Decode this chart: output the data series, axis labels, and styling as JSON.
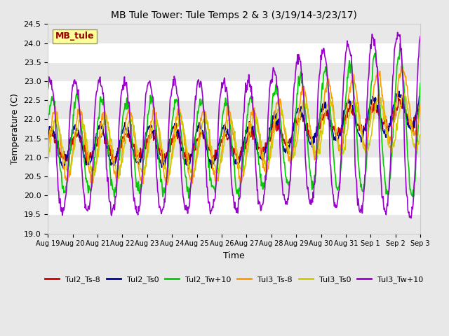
{
  "title": "MB Tule Tower: Tule Temps 2 & 3 (3/19/14-3/23/17)",
  "xlabel": "Time",
  "ylabel": "Temperature (C)",
  "ylim": [
    19.0,
    24.5
  ],
  "yticks": [
    19.0,
    19.5,
    20.0,
    20.5,
    21.0,
    21.5,
    22.0,
    22.5,
    23.0,
    23.5,
    24.0,
    24.5
  ],
  "xtick_labels": [
    "Aug 19",
    "Aug 20",
    "Aug 21",
    "Aug 22",
    "Aug 23",
    "Aug 24",
    "Aug 25",
    "Aug 26",
    "Aug 27",
    "Aug 28",
    "Aug 29",
    "Aug 30",
    "Aug 31",
    "Sep 1",
    "Sep 2",
    "Sep 3"
  ],
  "legend_labels": [
    "Tul2_Ts-8",
    "Tul2_Ts0",
    "Tul2_Tw+10",
    "Tul3_Ts-8",
    "Tul3_Ts0",
    "Tul3_Tw+10"
  ],
  "legend_colors": [
    "#cc0000",
    "#000099",
    "#00cc00",
    "#ff9900",
    "#cccc00",
    "#9900cc"
  ],
  "line_width": 1.2,
  "bg_color": "#e8e8e8",
  "plot_bg_color": "#ffffff",
  "label_box_color": "#ffff99",
  "label_box_text": "MB_tule",
  "label_box_text_color": "#990000",
  "n_points": 720
}
